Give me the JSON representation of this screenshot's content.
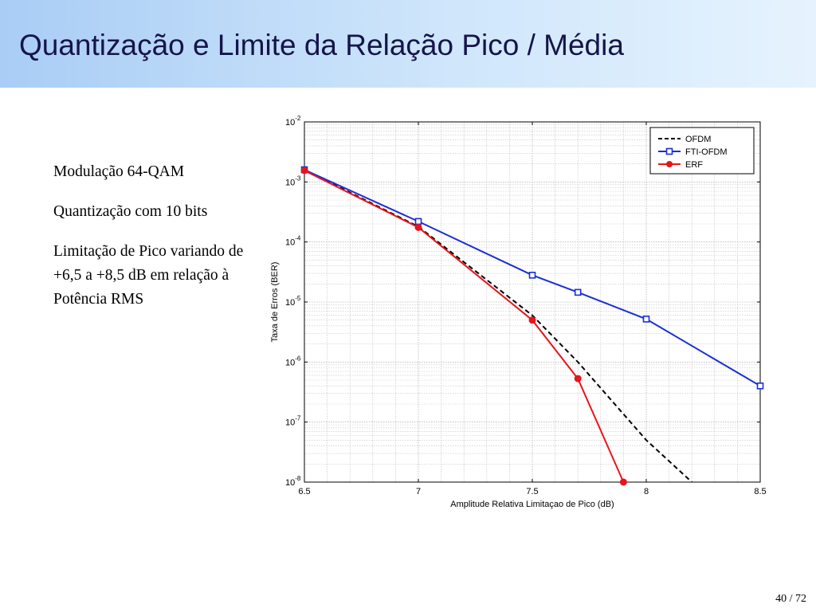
{
  "slide": {
    "title": "Quantização e Limite da Relação Pico / Média",
    "page_number": "40 / 72"
  },
  "notes": [
    "Modulação 64-QAM",
    "Quantização com 10 bits",
    "Limitação  de Pico variando de +6,5 a +8,5 dB em relação à Potência RMS"
  ],
  "colors": {
    "ofdm": "#000000",
    "fti_ofdm": "#1a2ed6",
    "erf": "#e8141b"
  },
  "chart_data": {
    "type": "line",
    "xlabel": "Amplitude Relativa Limitaçao de Pico (dB)",
    "ylabel": "Taxa de Erros (BER)",
    "y_scale": "log",
    "xlim": [
      6.5,
      8.5
    ],
    "ylim": [
      1e-08,
      0.01
    ],
    "grid": true,
    "legend_position": "top-right",
    "x_ticks": [
      "6.5",
      "7",
      "7.5",
      "8",
      "8.5"
    ],
    "y_ticks": [
      {
        "base": "10",
        "exp": "-2"
      },
      {
        "base": "10",
        "exp": "-3"
      },
      {
        "base": "10",
        "exp": "-4"
      },
      {
        "base": "10",
        "exp": "-5"
      },
      {
        "base": "10",
        "exp": "-6"
      },
      {
        "base": "10",
        "exp": "-7"
      },
      {
        "base": "10",
        "exp": "-8"
      }
    ],
    "series": [
      {
        "name": "OFDM",
        "style": "dashed",
        "marker": "none",
        "points": [
          [
            6.5,
            0.0016
          ],
          [
            7.0,
            0.00018
          ],
          [
            7.5,
            6e-06
          ],
          [
            7.7,
            1e-06
          ],
          [
            8.0,
            5e-08
          ],
          [
            8.2,
            1e-08
          ]
        ]
      },
      {
        "name": "FTI-OFDM",
        "style": "solid",
        "marker": "square",
        "points": [
          [
            6.5,
            0.0016
          ],
          [
            7.0,
            0.00022
          ],
          [
            7.5,
            2.8e-05
          ],
          [
            7.7,
            1.45e-05
          ],
          [
            8.0,
            5.2e-06
          ],
          [
            8.5,
            4e-07
          ]
        ]
      },
      {
        "name": "ERF",
        "style": "solid",
        "marker": "circle",
        "points": [
          [
            6.5,
            0.00155
          ],
          [
            7.0,
            0.000175
          ],
          [
            7.5,
            5e-06
          ],
          [
            7.7,
            5.3e-07
          ],
          [
            7.9,
            1e-08
          ]
        ]
      }
    ]
  }
}
